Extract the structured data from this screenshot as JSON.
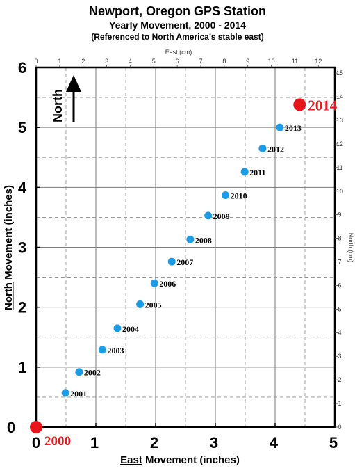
{
  "title": "Newport, Oregon GPS Station",
  "subtitle": "Yearly Movement, 2000 - 2014",
  "subtitle2": "(Referenced to North America’s stable east)",
  "north_arrow_label": "North",
  "chart_data": {
    "type": "scatter",
    "xlabel_prefix": "East",
    "xlabel_rest": " Movement (inches)",
    "ylabel_prefix": "North",
    "ylabel_rest": " Movement (inches)",
    "top_axis_label": "East (cm)",
    "right_axis_label": "North (cm)",
    "xlim": [
      0,
      5
    ],
    "ylim": [
      0,
      6
    ],
    "x_ticks": [
      "0",
      "1",
      "2",
      "3",
      "4",
      "5"
    ],
    "y_ticks": [
      "0",
      "1",
      "2",
      "3",
      "4",
      "5",
      "6"
    ],
    "top_ticks": [
      "0",
      "1",
      "2",
      "3",
      "4",
      "5",
      "6",
      "7",
      "8",
      "9",
      "10",
      "11",
      "12"
    ],
    "right_ticks": [
      "0",
      "1",
      "2",
      "3",
      "4",
      "5",
      "6",
      "7",
      "8",
      "9",
      "10",
      "11",
      "12",
      "13",
      "14",
      "15"
    ],
    "grid": true,
    "point_color": "#1c9ce6",
    "endpoint_color": "#e8161b",
    "points": [
      {
        "label": "2000",
        "x": 0.0,
        "y": 0.0
      },
      {
        "label": "2001",
        "x": 0.49,
        "y": 0.57
      },
      {
        "label": "2002",
        "x": 0.72,
        "y": 0.92
      },
      {
        "label": "2003",
        "x": 1.11,
        "y": 1.29
      },
      {
        "label": "2004",
        "x": 1.36,
        "y": 1.65
      },
      {
        "label": "2005",
        "x": 1.74,
        "y": 2.05
      },
      {
        "label": "2006",
        "x": 1.98,
        "y": 2.4
      },
      {
        "label": "2007",
        "x": 2.27,
        "y": 2.76
      },
      {
        "label": "2008",
        "x": 2.58,
        "y": 3.13
      },
      {
        "label": "2009",
        "x": 2.88,
        "y": 3.53
      },
      {
        "label": "2010",
        "x": 3.17,
        "y": 3.87
      },
      {
        "label": "2011",
        "x": 3.49,
        "y": 4.26
      },
      {
        "label": "2012",
        "x": 3.79,
        "y": 4.65
      },
      {
        "label": "2013",
        "x": 4.08,
        "y": 5.0
      },
      {
        "label": "2014",
        "x": 4.41,
        "y": 5.38
      }
    ]
  }
}
